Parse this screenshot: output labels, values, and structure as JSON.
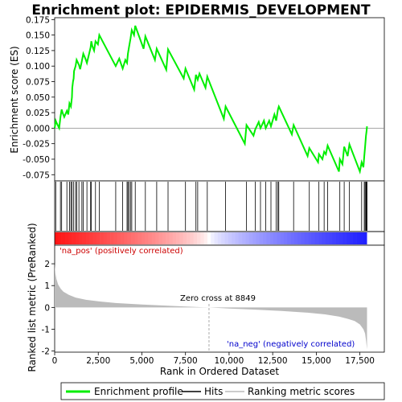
{
  "colors": {
    "enrichment_line": "#00ee00",
    "hit_line": "#000000",
    "metric_fill": "#bbbbbb",
    "pos_label": "#cc0000",
    "neg_label": "#0000cc",
    "zero_cross_line": "#aaaaaa"
  },
  "chart_data": {
    "type": "line",
    "title": "Enrichment plot: EPIDERMIS_DEVELOPMENT",
    "top_panel": {
      "ylabel": "Enrichment score (ES)",
      "ylim": [
        -0.085,
        0.178
      ],
      "yticks": [
        -0.075,
        -0.05,
        -0.025,
        0.0,
        0.025,
        0.05,
        0.075,
        0.1,
        0.125,
        0.15,
        0.175
      ],
      "ytick_labels": [
        "-0.075",
        "-0.050",
        "-0.025",
        "0.000",
        "0.025",
        "0.050",
        "0.075",
        "0.100",
        "0.125",
        "0.150",
        "0.175"
      ],
      "series": [
        {
          "name": "Enrichment profile",
          "x": [
            0,
            60,
            120,
            260,
            330,
            400,
            450,
            550,
            700,
            780,
            850,
            930,
            990,
            1010,
            1050,
            1090,
            1110,
            1200,
            1260,
            1390,
            1460,
            1560,
            1640,
            1760,
            1850,
            1960,
            2060,
            2100,
            2160,
            2260,
            2340,
            2480,
            2560,
            3500,
            3700,
            3900,
            4050,
            4150,
            4200,
            4260,
            4350,
            4420,
            4550,
            4620,
            5100,
            5200,
            5750,
            5850,
            6400,
            6500,
            7400,
            7500,
            8000,
            8100,
            8200,
            8300,
            8650,
            8750,
            9700,
            9800,
            10900,
            11000,
            11400,
            11500,
            11700,
            11800,
            12000,
            12100,
            12300,
            12400,
            12600,
            12700,
            12800,
            12850,
            13600,
            13700,
            14500,
            14600,
            15100,
            15150,
            15350,
            15450,
            15550,
            15650,
            16300,
            16350,
            16500,
            16600,
            16800,
            16900,
            17500,
            17600,
            17700,
            17750,
            17800,
            17850,
            17880,
            17910
          ],
          "values": [
            0.0,
            0.012,
            0.008,
            0.0,
            0.018,
            0.03,
            0.025,
            0.018,
            0.028,
            0.022,
            0.04,
            0.035,
            0.05,
            0.065,
            0.075,
            0.08,
            0.092,
            0.1,
            0.11,
            0.102,
            0.095,
            0.108,
            0.12,
            0.112,
            0.105,
            0.118,
            0.13,
            0.14,
            0.132,
            0.125,
            0.14,
            0.135,
            0.15,
            0.1,
            0.112,
            0.096,
            0.11,
            0.105,
            0.12,
            0.13,
            0.145,
            0.158,
            0.15,
            0.165,
            0.128,
            0.148,
            0.11,
            0.128,
            0.094,
            0.127,
            0.08,
            0.096,
            0.062,
            0.086,
            0.078,
            0.088,
            0.065,
            0.083,
            0.015,
            0.035,
            -0.025,
            0.005,
            -0.012,
            -0.002,
            0.01,
            0.0,
            0.012,
            0.0,
            0.012,
            0.003,
            0.022,
            0.012,
            0.03,
            0.035,
            -0.01,
            0.005,
            -0.045,
            -0.032,
            -0.055,
            -0.042,
            -0.05,
            -0.038,
            -0.042,
            -0.028,
            -0.07,
            -0.05,
            -0.058,
            -0.03,
            -0.045,
            -0.026,
            -0.07,
            -0.055,
            -0.063,
            -0.045,
            -0.03,
            -0.012,
            -0.005,
            0.003
          ]
        }
      ]
    },
    "hits_panel": {
      "hit_positions": [
        60,
        330,
        400,
        700,
        850,
        930,
        990,
        1090,
        1200,
        1260,
        1390,
        1560,
        1640,
        1850,
        2060,
        2100,
        2340,
        2560,
        3500,
        3900,
        4150,
        4200,
        4260,
        4350,
        4420,
        4620,
        5200,
        5850,
        6500,
        7500,
        8100,
        8200,
        8750,
        9800,
        11000,
        11500,
        11800,
        12100,
        12400,
        12700,
        12800,
        12850,
        13700,
        14600,
        15150,
        15450,
        15650,
        16350,
        16600,
        16900,
        17600,
        17750,
        17800,
        17850,
        17880,
        17910
      ]
    },
    "bottom_panel": {
      "ylabel": "Ranked list metric (PreRanked)",
      "ylim": [
        -2.05,
        2.85
      ],
      "yticks": [
        -2,
        -1,
        0,
        1,
        2
      ],
      "ytick_labels": [
        "-2",
        "-1",
        "0",
        "1",
        "2"
      ],
      "metric_curve": {
        "x": [
          0,
          40,
          100,
          200,
          350,
          500,
          800,
          1200,
          1800,
          2500,
          3500,
          5000,
          6500,
          7500,
          8849,
          10000,
          11500,
          13000,
          14500,
          15500,
          16300,
          16800,
          17200,
          17500,
          17700,
          17800,
          17860,
          17910
        ],
        "values": [
          2.0,
          1.55,
          1.3,
          1.05,
          0.85,
          0.72,
          0.58,
          0.45,
          0.35,
          0.28,
          0.2,
          0.13,
          0.08,
          0.04,
          0.0,
          -0.05,
          -0.1,
          -0.16,
          -0.24,
          -0.32,
          -0.42,
          -0.52,
          -0.62,
          -0.78,
          -1.0,
          -1.2,
          -1.55,
          -1.92
        ]
      },
      "zero_cross_rank": 8849,
      "annotations": {
        "pos_label": "'na_pos' (positively correlated)",
        "neg_label": "'na_neg' (negatively correlated)",
        "zero_cross_label": "Zero cross at 8849"
      }
    },
    "x_axis": {
      "xlabel": "Rank in Ordered Dataset",
      "xlim": [
        0,
        18900
      ],
      "xticks": [
        0,
        2500,
        5000,
        7500,
        10000,
        12500,
        15000,
        17500
      ],
      "xtick_labels": [
        "0",
        "2,500",
        "5,000",
        "7,500",
        "10,000",
        "12,500",
        "15,000",
        "17,500"
      ],
      "total_ranks": 17910
    },
    "legend": {
      "placement": "bottom",
      "entries": [
        "Enrichment profile",
        "Hits",
        "Ranking metric scores"
      ]
    }
  }
}
